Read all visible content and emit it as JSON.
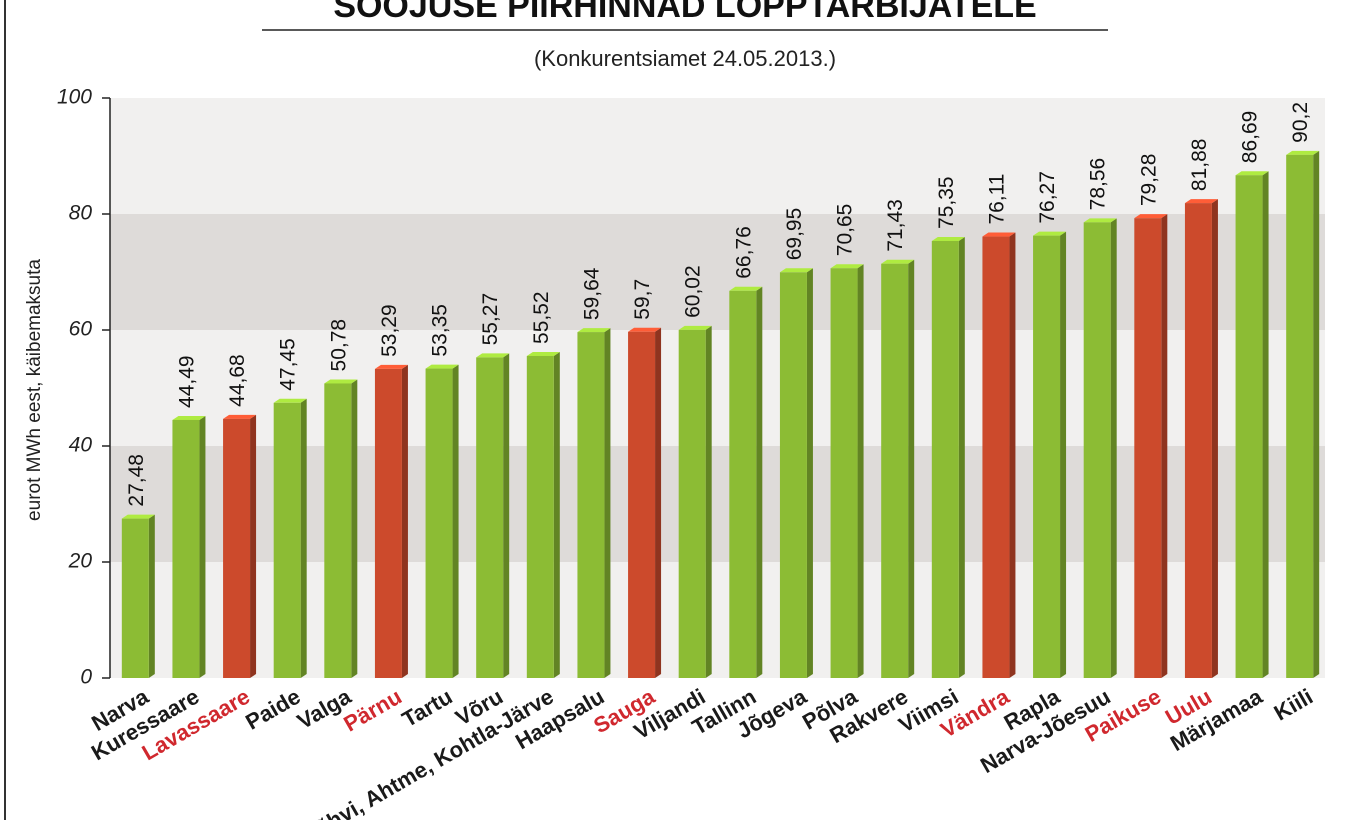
{
  "chart_data": {
    "type": "bar",
    "title": "SOOJUSE PIIRHINNAD LÕPPTARBIJATELE",
    "subtitle": "(Konkurentsiamet 24.05.2013.)",
    "y_label": "eurot MWh eest, käibemaksuta",
    "categories": [
      "Narva",
      "Kuressaare",
      "Lavassaare",
      "Paide",
      "Valga",
      "Pärnu",
      "Tartu",
      "Võru",
      "Jõhvi, Ahtme, Kohtla-Järve",
      "Haapsalu",
      "Sauga",
      "Viljandi",
      "Tallinn",
      "Jõgeva",
      "Põlva",
      "Rakvere",
      "Viimsi",
      "Vändra",
      "Rapla",
      "Narva-Jõesuu",
      "Paikuse",
      "Uulu",
      "Märjamaa",
      "Kiili"
    ],
    "values": [
      27.48,
      44.49,
      44.68,
      47.45,
      50.78,
      53.29,
      53.35,
      55.27,
      55.52,
      59.64,
      59.7,
      60.02,
      66.76,
      69.95,
      70.65,
      71.43,
      75.35,
      76.11,
      76.27,
      78.56,
      79.28,
      81.88,
      86.69,
      90.2
    ],
    "value_labels": [
      "27,48",
      "44,49",
      "44,68",
      "47,45",
      "50,78",
      "53,29",
      "53,35",
      "55,27",
      "55,52",
      "59,64",
      "59,7",
      "60,02",
      "66,76",
      "69,95",
      "70,65",
      "71,43",
      "75,35",
      "76,11",
      "76,27",
      "78,56",
      "79,28",
      "81,88",
      "86,69",
      "90,2"
    ],
    "colors": [
      "#8cbc34",
      "#8cbc34",
      "#cc4a2c",
      "#8cbc34",
      "#8cbc34",
      "#cc4a2c",
      "#8cbc34",
      "#8cbc34",
      "#8cbc34",
      "#8cbc34",
      "#cc4a2c",
      "#8cbc34",
      "#8cbc34",
      "#8cbc34",
      "#8cbc34",
      "#8cbc34",
      "#8cbc34",
      "#cc4a2c",
      "#8cbc34",
      "#8cbc34",
      "#cc4a2c",
      "#cc4a2c",
      "#8cbc34",
      "#8cbc34"
    ],
    "label_colors": [
      "#1a1a1a",
      "#1a1a1a",
      "#d0282e",
      "#1a1a1a",
      "#1a1a1a",
      "#d0282e",
      "#1a1a1a",
      "#1a1a1a",
      "#1a1a1a",
      "#1a1a1a",
      "#d0282e",
      "#1a1a1a",
      "#1a1a1a",
      "#1a1a1a",
      "#1a1a1a",
      "#1a1a1a",
      "#1a1a1a",
      "#d0282e",
      "#1a1a1a",
      "#1a1a1a",
      "#d0282e",
      "#d0282e",
      "#1a1a1a",
      "#1a1a1a"
    ],
    "ylim": [
      0,
      100
    ],
    "yticks": [
      0,
      20,
      40,
      60,
      80,
      100
    ]
  }
}
